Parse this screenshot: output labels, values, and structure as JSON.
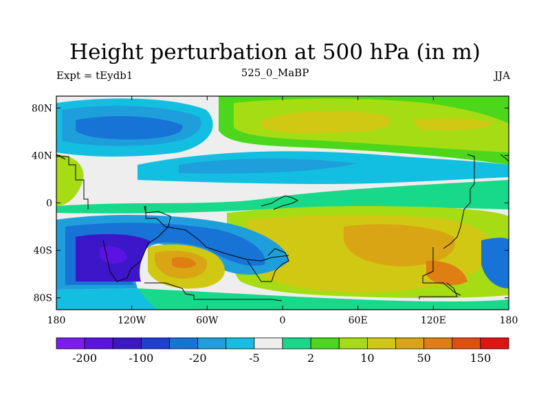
{
  "chart_data": {
    "type": "heatmap",
    "title": "Height perturbation at 500 hPa (in m)",
    "left_label": "Expt = tEydb1",
    "center_label": "525_0_MaBP",
    "right_label": "JJA",
    "x_ticks": [
      "180",
      "120W",
      "60W",
      "0",
      "60E",
      "120E",
      "180"
    ],
    "x_range": [
      -180,
      180
    ],
    "y_ticks": [
      "80N",
      "40N",
      "0",
      "40S",
      "80S"
    ],
    "y_range": [
      -90,
      90
    ],
    "colorbar": {
      "labels": [
        "-200",
        "-100",
        "-20",
        "-5",
        "2",
        "10",
        "50",
        "150"
      ],
      "colors": [
        "#7c1cf0",
        "#5c12e2",
        "#3c17c9",
        "#1f3fd4",
        "#1873d6",
        "#1e9fdc",
        "#13bfe0",
        "#eeeeee",
        "#18d98a",
        "#4cd61c",
        "#a6dc14",
        "#d1c814",
        "#d9a514",
        "#df7e12",
        "#e24e10",
        "#e01412"
      ]
    }
  }
}
